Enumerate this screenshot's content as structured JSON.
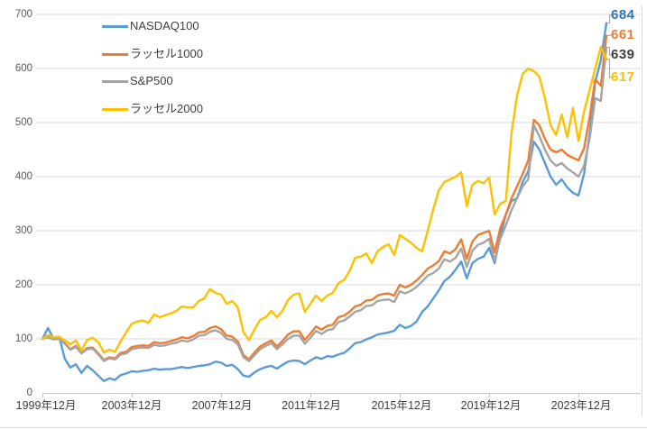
{
  "chart_data": {
    "type": "line",
    "title": "",
    "grid": true,
    "legend_position": "top-left-vertical",
    "x_axis": {
      "tick_labels": [
        "1999年12月",
        "2003年12月",
        "2007年12月",
        "2011年12月",
        "2015年12月",
        "2019年12月",
        "2023年12月"
      ],
      "points_per_tick_interval": 16,
      "frequency": "quarterly"
    },
    "y_axis": {
      "ticks": [
        0,
        100,
        200,
        300,
        400,
        500,
        600,
        700
      ],
      "min": 0,
      "max": 700
    },
    "colors": {
      "gridline": "#d9d9d9",
      "axis_line": "#c6c6c6",
      "leader_line": "#a6a6a6",
      "axis_text": "#595959",
      "x_axis_text": "#3f3f3f"
    },
    "series": [
      {
        "name": "NASDAQ100",
        "color": "#5b9bd5",
        "end_label": "684",
        "end_label_color": "#2e75b6",
        "values": [
          100,
          120,
          100,
          104,
          63,
          47,
          53,
          37,
          50,
          42,
          32,
          22,
          27,
          24,
          33,
          36,
          40,
          39,
          41,
          42,
          45,
          43,
          44,
          44,
          46,
          48,
          46,
          48,
          50,
          51,
          53,
          58,
          56,
          50,
          52,
          44,
          32,
          30,
          38,
          44,
          48,
          50,
          45,
          52,
          58,
          60,
          59,
          53,
          60,
          66,
          63,
          68,
          67,
          71,
          74,
          82,
          92,
          94,
          99,
          103,
          108,
          110,
          112,
          115,
          126,
          120,
          124,
          132,
          150,
          160,
          175,
          190,
          207,
          215,
          228,
          243,
          212,
          240,
          248,
          252,
          268,
          240,
          290,
          330,
          355,
          360,
          390,
          410,
          465,
          450,
          425,
          400,
          385,
          395,
          380,
          370,
          365,
          405,
          480,
          575,
          615,
          684
        ]
      },
      {
        "name": "ラッセル1000",
        "color": "#ed7d31",
        "end_label": "661",
        "end_label_color": "#ed7d31",
        "values": [
          100,
          104,
          100,
          101,
          92,
          81,
          87,
          74,
          83,
          84,
          73,
          61,
          66,
          64,
          74,
          76,
          85,
          87,
          88,
          87,
          94,
          92,
          93,
          96,
          99,
          103,
          101,
          105,
          112,
          113,
          120,
          123,
          118,
          106,
          104,
          95,
          70,
          62,
          75,
          86,
          92,
          97,
          86,
          96,
          108,
          114,
          114,
          98,
          110,
          123,
          117,
          124,
          126,
          140,
          143,
          150,
          160,
          163,
          171,
          172,
          180,
          183,
          184,
          180,
          200,
          195,
          200,
          208,
          218,
          230,
          236,
          244,
          262,
          258,
          266,
          284,
          248,
          280,
          292,
          296,
          300,
          260,
          305,
          330,
          360,
          382,
          405,
          430,
          505,
          495,
          470,
          450,
          445,
          450,
          440,
          435,
          430,
          452,
          510,
          580,
          568,
          661
        ]
      },
      {
        "name": "S&P500",
        "color": "#a5a5a5",
        "end_label": "639",
        "end_label_color": "#404040",
        "values": [
          100,
          103,
          99,
          100,
          91,
          80,
          85,
          73,
          81,
          82,
          71,
          59,
          64,
          62,
          71,
          73,
          81,
          83,
          84,
          83,
          89,
          87,
          88,
          91,
          93,
          97,
          95,
          99,
          106,
          107,
          113,
          116,
          111,
          100,
          98,
          90,
          66,
          59,
          70,
          81,
          87,
          92,
          81,
          90,
          100,
          106,
          106,
          91,
          102,
          115,
          109,
          116,
          118,
          131,
          134,
          141,
          150,
          153,
          161,
          162,
          170,
          172,
          173,
          168,
          188,
          184,
          189,
          196,
          206,
          217,
          222,
          230,
          247,
          243,
          250,
          267,
          233,
          263,
          274,
          278,
          285,
          245,
          285,
          310,
          338,
          360,
          382,
          395,
          495,
          475,
          450,
          430,
          420,
          425,
          415,
          408,
          400,
          420,
          470,
          545,
          540,
          639
        ]
      },
      {
        "name": "ラッセル2000",
        "color": "#ffc000",
        "end_label": "617",
        "end_label_color": "#ffc000",
        "values": [
          100,
          107,
          103,
          104,
          97,
          90,
          97,
          79,
          98,
          102,
          94,
          75,
          80,
          76,
          95,
          112,
          128,
          132,
          134,
          130,
          145,
          140,
          144,
          147,
          152,
          160,
          158,
          158,
          170,
          175,
          192,
          185,
          182,
          165,
          170,
          158,
          112,
          98,
          118,
          135,
          140,
          152,
          140,
          152,
          172,
          182,
          184,
          150,
          165,
          180,
          170,
          180,
          185,
          203,
          209,
          225,
          250,
          252,
          258,
          240,
          262,
          270,
          275,
          255,
          292,
          285,
          278,
          268,
          262,
          300,
          340,
          375,
          390,
          395,
          400,
          408,
          345,
          385,
          392,
          388,
          398,
          330,
          350,
          355,
          480,
          550,
          590,
          600,
          595,
          585,
          545,
          495,
          477,
          515,
          473,
          527,
          466,
          520,
          560,
          600,
          640,
          617
        ]
      }
    ]
  }
}
